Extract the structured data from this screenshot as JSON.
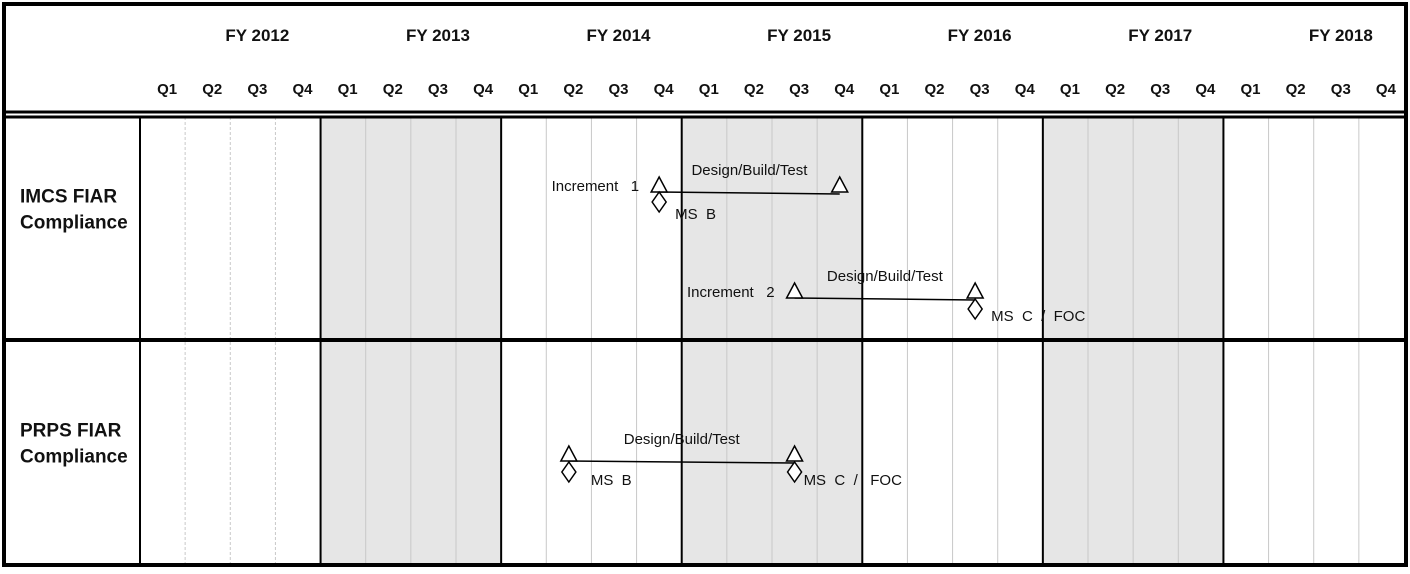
{
  "fiscal_years": [
    "FY 2012",
    "FY 2013",
    "FY 2014",
    "FY 2015",
    "FY 2016",
    "FY 2017",
    "FY 2018"
  ],
  "quarters": [
    "Q1",
    "Q2",
    "Q3",
    "Q4"
  ],
  "shaded_years": [
    "FY 2013",
    "FY 2015",
    "FY 2017"
  ],
  "colors": {
    "shade": "#e6e6e6",
    "border": "#000000",
    "gridline": "#c8c8c8"
  },
  "rows": [
    {
      "label_lines": [
        "IMCS FIAR",
        "Compliance"
      ]
    },
    {
      "label_lines": [
        "PRPS FIAR",
        "Compliance"
      ]
    }
  ],
  "bars": [
    {
      "row": 0,
      "label": "Increment   1",
      "start": "FY 2014 Q4",
      "end": "FY 2015 Q4",
      "task": "Design/Build/Test"
    },
    {
      "row": 0,
      "label": "Increment   2",
      "start": "FY 2015 Q3",
      "end": "FY 2016 Q3",
      "task": "Design/Build/Test"
    },
    {
      "row": 1,
      "label": "",
      "start": "FY 2014 Q2",
      "end": "FY 2015 Q3",
      "task": "Design/Build/Test"
    }
  ],
  "milestones": [
    {
      "row": 0,
      "at": "FY 2014 Q4",
      "label": "MS  B"
    },
    {
      "row": 0,
      "at": "FY 2016 Q3",
      "label": "MS  C  /  FOC"
    },
    {
      "row": 1,
      "at": "FY 2014 Q2",
      "label": "MS  B"
    },
    {
      "row": 1,
      "at": "FY 2015 Q3",
      "label": "MS  C  /   FOC"
    }
  ]
}
